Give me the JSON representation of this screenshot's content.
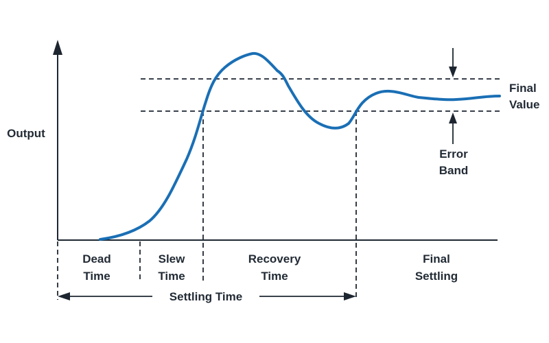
{
  "labels": {
    "y_axis": "Output",
    "final_value_line1": "Final",
    "final_value_line2": "Value",
    "error_band_line1": "Error",
    "error_band_line2": "Band",
    "phases": [
      {
        "line1": "Dead",
        "line2": "Time"
      },
      {
        "line1": "Slew",
        "line2": "Time"
      },
      {
        "line1": "Recovery",
        "line2": "Time"
      },
      {
        "line1": "Final",
        "line2": "Settling"
      }
    ],
    "settling_time": "Settling Time"
  },
  "colors": {
    "curve": "#1a6fb5",
    "lines": "#1d2630",
    "text": "#222b35",
    "background": "#ffffff"
  }
}
